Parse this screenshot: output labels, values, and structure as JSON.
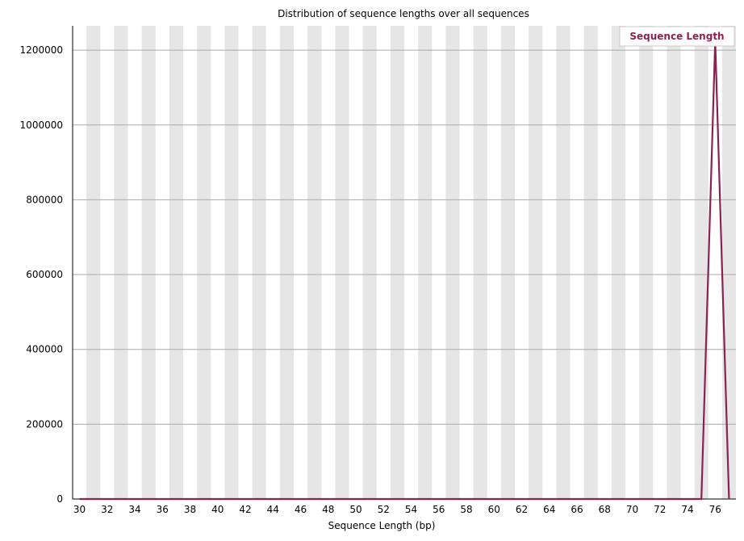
{
  "chart_data": {
    "type": "line",
    "title": "Distribution of sequence lengths over all sequences",
    "xlabel": "Sequence Length (bp)",
    "ylabel": "",
    "x": [
      30,
      31,
      32,
      33,
      34,
      35,
      36,
      37,
      38,
      39,
      40,
      41,
      42,
      43,
      44,
      45,
      46,
      47,
      48,
      49,
      50,
      51,
      52,
      53,
      54,
      55,
      56,
      57,
      58,
      59,
      60,
      61,
      62,
      63,
      64,
      65,
      66,
      67,
      68,
      69,
      70,
      71,
      72,
      73,
      74,
      75,
      76,
      77
    ],
    "x_tick_labels": [
      "30",
      "32",
      "34",
      "36",
      "38",
      "40",
      "42",
      "44",
      "46",
      "48",
      "50",
      "52",
      "54",
      "56",
      "58",
      "60",
      "62",
      "64",
      "66",
      "68",
      "70",
      "72",
      "74",
      "76"
    ],
    "series": [
      {
        "name": "Sequence Length",
        "color": "#8b2252",
        "values": [
          0,
          0,
          0,
          0,
          0,
          0,
          0,
          0,
          0,
          0,
          0,
          0,
          0,
          0,
          0,
          0,
          0,
          0,
          0,
          0,
          0,
          0,
          0,
          0,
          0,
          0,
          0,
          0,
          0,
          0,
          0,
          0,
          0,
          0,
          0,
          0,
          0,
          0,
          0,
          0,
          0,
          0,
          0,
          0,
          0,
          0,
          1225000,
          0
        ]
      }
    ],
    "y_ticks": [
      0,
      200000,
      400000,
      600000,
      800000,
      1000000,
      1200000
    ],
    "y_tick_labels": [
      "0",
      "200000",
      "400000",
      "600000",
      "800000",
      "1000000",
      "1200000"
    ],
    "ylim": [
      0,
      1265000
    ],
    "xlim": [
      29.5,
      77.5
    ],
    "grid": true,
    "alternating_band_color": "#e6e6e6",
    "legend_position": "top-right"
  }
}
